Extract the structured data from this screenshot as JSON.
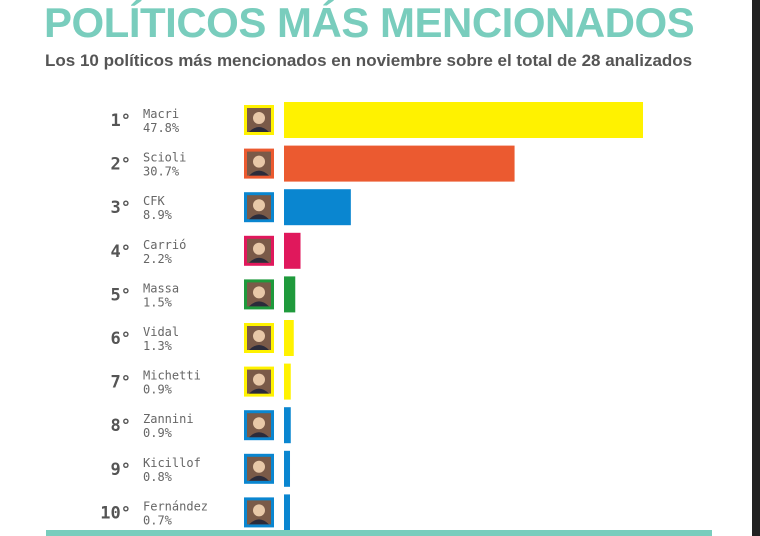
{
  "header": {
    "title": "POLÍTICOS MÁS MENCIONADOS",
    "subtitle": "Los 10 políticos más mencionados en noviembre sobre el total de 28 analizados"
  },
  "chart_data": {
    "type": "bar",
    "orientation": "horizontal",
    "title": "POLÍTICOS MÁS MENCIONADOS",
    "subtitle": "Los 10 políticos más mencionados en noviembre sobre el total de 28 analizados",
    "ranks": [
      "1°",
      "2°",
      "3°",
      "4°",
      "5°",
      "6°",
      "7°",
      "8°",
      "9°",
      "10°"
    ],
    "categories": [
      "Macri",
      "Scioli",
      "CFK",
      "Carrió",
      "Massa",
      "Vidal",
      "Michetti",
      "Zannini",
      "Kicillof",
      "Fernández"
    ],
    "values": [
      47.8,
      30.7,
      8.9,
      2.2,
      1.5,
      1.3,
      0.9,
      0.9,
      0.8,
      0.7
    ],
    "value_labels": [
      "47.8%",
      "30.7%",
      "8.9%",
      "2.2%",
      "1.5%",
      "1.3%",
      "0.9%",
      "0.9%",
      "0.8%",
      "0.7%"
    ],
    "colors": [
      "#fff200",
      "#eb5a30",
      "#0a86d0",
      "#e0185c",
      "#1f9a3c",
      "#fff200",
      "#fff200",
      "#0a86d0",
      "#0a86d0",
      "#0a86d0"
    ],
    "accent_color": "#79cdbd",
    "grid": false,
    "legend": "none"
  }
}
